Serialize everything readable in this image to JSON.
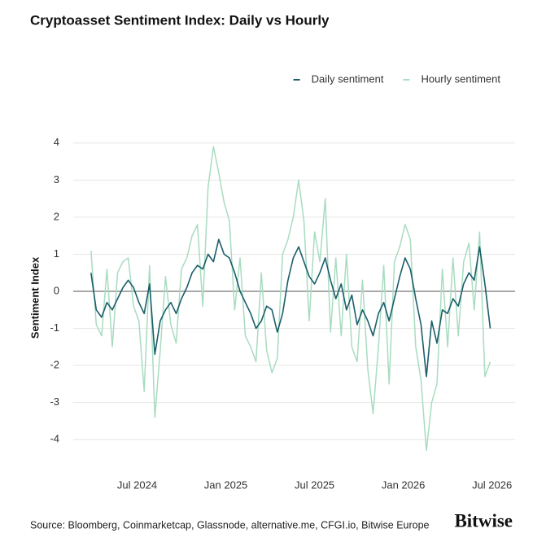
{
  "chart_data": {
    "type": "line",
    "title": "Cryptoasset Sentiment Index: Daily vs Hourly",
    "ylabel": "Sentiment Index",
    "source": "Source: Bloomberg, Coinmarketcap, Glassnode, alternative.me, CFGI.io, Bitwise Europe",
    "brand": "Bitwise",
    "x": [
      2024.24,
      2024.27,
      2024.3,
      2024.33,
      2024.36,
      2024.39,
      2024.42,
      2024.45,
      2024.48,
      2024.51,
      2024.54,
      2024.57,
      2024.6,
      2024.63,
      2024.66,
      2024.69,
      2024.72,
      2024.75,
      2024.78,
      2024.81,
      2024.84,
      2024.87,
      2024.9,
      2024.93,
      2024.96,
      2024.99,
      2025.02,
      2025.05,
      2025.08,
      2025.11,
      2025.14,
      2025.17,
      2025.2,
      2025.23,
      2025.26,
      2025.29,
      2025.32,
      2025.35,
      2025.38,
      2025.41,
      2025.44,
      2025.47,
      2025.5,
      2025.53,
      2025.56,
      2025.59,
      2025.62,
      2025.65,
      2025.68,
      2025.71,
      2025.74,
      2025.77,
      2025.8,
      2025.83,
      2025.86,
      2025.89,
      2025.92,
      2025.95,
      2025.98,
      2026.01,
      2026.04,
      2026.07,
      2026.1,
      2026.13,
      2026.16,
      2026.19,
      2026.22,
      2026.25,
      2026.28,
      2026.31,
      2026.34,
      2026.37,
      2026.4,
      2026.43,
      2026.46,
      2026.49
    ],
    "series": [
      {
        "name": "Hourly sentiment",
        "color": "#a8dcc0",
        "values": [
          1.1,
          -0.9,
          -1.2,
          0.6,
          -1.5,
          0.5,
          0.8,
          0.9,
          -0.4,
          -0.8,
          -2.7,
          0.7,
          -3.4,
          -1.6,
          0.4,
          -0.9,
          -1.4,
          0.6,
          0.9,
          1.5,
          1.8,
          -0.4,
          2.8,
          3.9,
          3.2,
          2.4,
          1.9,
          -0.5,
          0.9,
          -1.2,
          -1.5,
          -1.9,
          0.5,
          -1.6,
          -2.2,
          -1.8,
          1.0,
          1.4,
          2.0,
          3.0,
          1.9,
          -0.8,
          1.6,
          0.8,
          2.5,
          -1.1,
          0.9,
          -1.2,
          1.0,
          -1.5,
          -1.9,
          0.3,
          -2.1,
          -3.3,
          -1.5,
          0.7,
          -2.5,
          0.8,
          1.2,
          1.8,
          1.4,
          -1.5,
          -2.4,
          -4.3,
          -3.0,
          -2.5,
          0.6,
          -1.5,
          0.9,
          -1.2,
          0.8,
          1.3,
          -0.5,
          1.6,
          -2.3,
          -1.9
        ]
      },
      {
        "name": "Daily sentiment",
        "color": "#1a5e6a",
        "values": [
          0.5,
          -0.5,
          -0.7,
          -0.3,
          -0.5,
          -0.2,
          0.1,
          0.3,
          0.1,
          -0.3,
          -0.6,
          0.2,
          -1.7,
          -0.8,
          -0.5,
          -0.3,
          -0.6,
          -0.2,
          0.1,
          0.5,
          0.7,
          0.6,
          1.0,
          0.8,
          1.4,
          1.0,
          0.9,
          0.5,
          0.0,
          -0.3,
          -0.6,
          -1.0,
          -0.8,
          -0.4,
          -0.5,
          -1.1,
          -0.6,
          0.3,
          0.9,
          1.2,
          0.8,
          0.4,
          0.2,
          0.5,
          0.9,
          0.3,
          -0.2,
          0.2,
          -0.5,
          -0.1,
          -0.9,
          -0.5,
          -0.8,
          -1.2,
          -0.6,
          -0.3,
          -0.8,
          -0.2,
          0.4,
          0.9,
          0.6,
          -0.2,
          -0.9,
          -2.3,
          -0.8,
          -1.4,
          -0.5,
          -0.6,
          -0.2,
          -0.4,
          0.2,
          0.5,
          0.3,
          1.2,
          0.2,
          -1.0
        ]
      }
    ],
    "xlim": [
      2024.14,
      2026.63
    ],
    "xticks": [
      {
        "value": 2024.5,
        "label": "Jul 2024"
      },
      {
        "value": 2025.0,
        "label": "Jan 2025"
      },
      {
        "value": 2025.5,
        "label": "Jul 2025"
      },
      {
        "value": 2026.0,
        "label": "Jan 2026"
      },
      {
        "value": 2026.5,
        "label": "Jul 2026"
      }
    ],
    "ylim": [
      -4.5,
      4.5
    ],
    "yticks": [
      -4,
      -3,
      -2,
      -1,
      0,
      1,
      2,
      3,
      4
    ],
    "grid": true,
    "legend": "top-right"
  }
}
